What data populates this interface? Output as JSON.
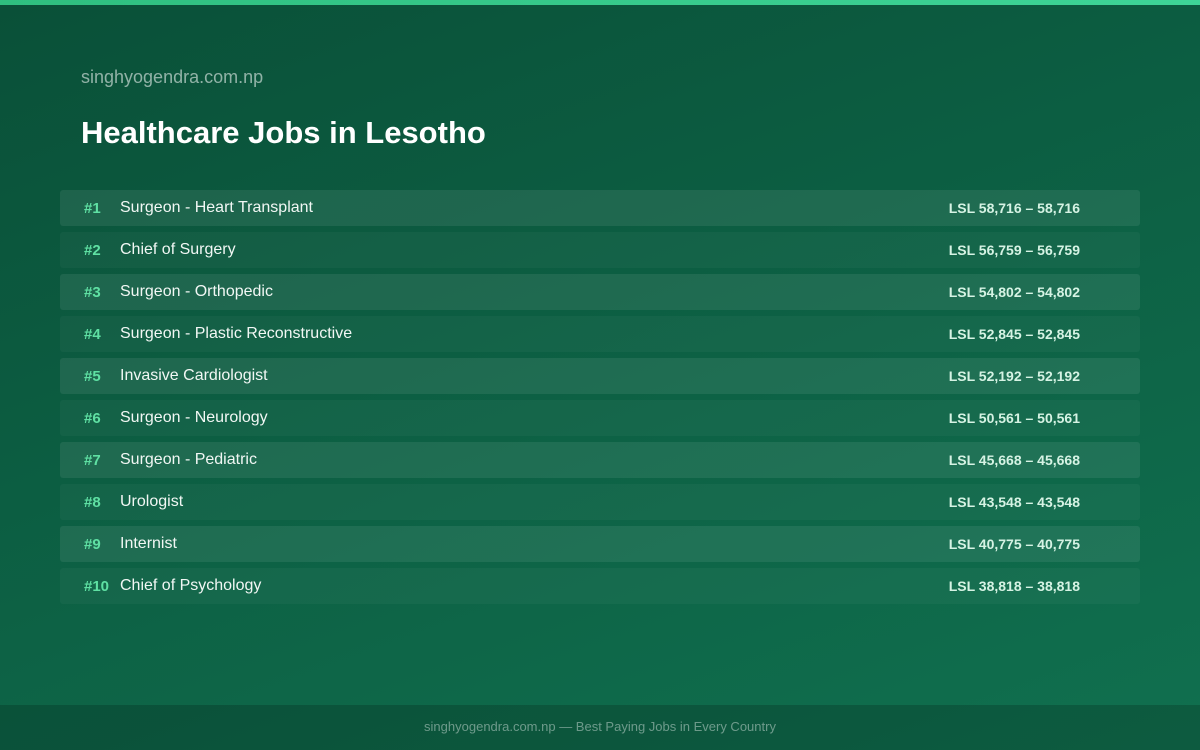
{
  "header": {
    "site": "singhyogendra.com.np",
    "title": "Healthcare Jobs in Lesotho"
  },
  "table": {
    "rows": [
      [
        "#1",
        "Surgeon - Heart Transplant",
        "LSL 58,716 – 58,716"
      ],
      [
        "#2",
        "Chief of Surgery",
        "LSL 56,759 – 56,759"
      ],
      [
        "#3",
        "Surgeon - Orthopedic",
        "LSL 54,802 – 54,802"
      ],
      [
        "#4",
        "Surgeon - Plastic Reconstructive",
        "LSL 52,845 – 52,845"
      ],
      [
        "#5",
        "Invasive Cardiologist",
        "LSL 52,192 – 52,192"
      ],
      [
        "#6",
        "Surgeon - Neurology",
        "LSL 50,561 – 50,561"
      ],
      [
        "#7",
        "Surgeon - Pediatric",
        "LSL 45,668 – 45,668"
      ],
      [
        "#8",
        "Urologist",
        "LSL 43,548 – 43,548"
      ],
      [
        "#9",
        "Internist",
        "LSL 40,775 – 40,775"
      ],
      [
        "#10",
        "Chief of Psychology",
        "LSL 38,818 – 38,818"
      ]
    ]
  },
  "footer": {
    "text": "singhyogendra.com.np — Best Paying Jobs in Every Country"
  }
}
